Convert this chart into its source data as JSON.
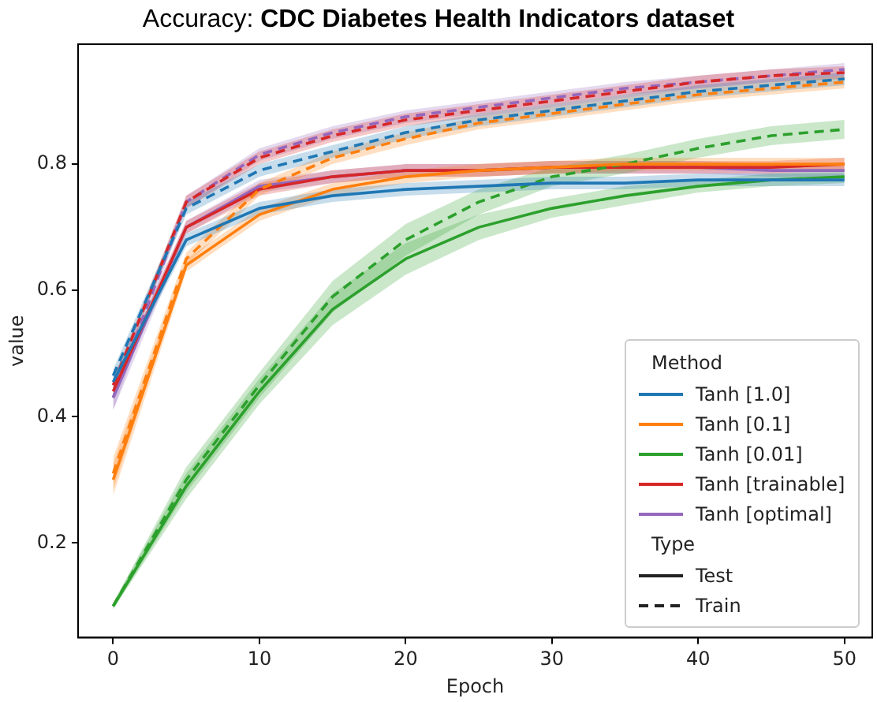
{
  "chart_data": {
    "type": "line",
    "title": "Accuracy: CDC Diabetes Health Indicators dataset",
    "xlabel": "Epoch",
    "ylabel": "value",
    "legend_title": "Method",
    "legend": "bottom right",
    "grid": false,
    "marker": "none",
    "x": [
      0,
      5,
      10,
      15,
      20,
      25,
      30,
      35,
      40,
      45,
      50
    ],
    "xlim": [
      -2.4,
      51.9
    ],
    "xticks": [
      0,
      10,
      20,
      30,
      40,
      50
    ],
    "ylim": [
      0.05,
      0.99
    ],
    "yticks": [
      0.2,
      0.4,
      0.6,
      0.8
    ],
    "annotations": [
      "Type",
      "Test",
      "Train"
    ],
    "series": [
      {
        "name": "Tanh [1.0]",
        "color": "#1f77b4",
        "line_style": "solid",
        "values": [
          0.455,
          0.68,
          0.73,
          0.75,
          0.76,
          0.765,
          0.77,
          0.77,
          0.775,
          0.775,
          0.775
        ],
        "lower": [
          0.445,
          0.67,
          0.72,
          0.74,
          0.75,
          0.755,
          0.76,
          0.76,
          0.765,
          0.765,
          0.765
        ],
        "upper": [
          0.465,
          0.69,
          0.74,
          0.76,
          0.77,
          0.775,
          0.78,
          0.78,
          0.785,
          0.785,
          0.785
        ]
      },
      {
        "color": "#1f77b4",
        "line_style": "dashed",
        "values": [
          0.465,
          0.73,
          0.79,
          0.82,
          0.85,
          0.87,
          0.885,
          0.9,
          0.915,
          0.925,
          0.935
        ],
        "lower": [
          0.455,
          0.72,
          0.78,
          0.81,
          0.84,
          0.86,
          0.875,
          0.89,
          0.905,
          0.915,
          0.925
        ],
        "upper": [
          0.475,
          0.74,
          0.8,
          0.83,
          0.86,
          0.88,
          0.895,
          0.91,
          0.925,
          0.935,
          0.945
        ]
      },
      {
        "name": "Tanh [0.1]",
        "color": "#ff7f0e",
        "line_style": "solid",
        "values": [
          0.3,
          0.64,
          0.72,
          0.76,
          0.78,
          0.79,
          0.795,
          0.8,
          0.8,
          0.8,
          0.8
        ],
        "lower": [
          0.275,
          0.63,
          0.71,
          0.75,
          0.77,
          0.78,
          0.785,
          0.79,
          0.79,
          0.79,
          0.79
        ],
        "upper": [
          0.325,
          0.65,
          0.73,
          0.77,
          0.79,
          0.8,
          0.805,
          0.81,
          0.81,
          0.81,
          0.81
        ]
      },
      {
        "color": "#ff7f0e",
        "line_style": "dashed",
        "values": [
          0.31,
          0.65,
          0.76,
          0.81,
          0.84,
          0.865,
          0.88,
          0.895,
          0.91,
          0.92,
          0.93
        ],
        "lower": [
          0.285,
          0.64,
          0.75,
          0.8,
          0.83,
          0.855,
          0.87,
          0.885,
          0.9,
          0.91,
          0.92
        ],
        "upper": [
          0.335,
          0.66,
          0.77,
          0.82,
          0.85,
          0.875,
          0.89,
          0.905,
          0.92,
          0.93,
          0.94
        ]
      },
      {
        "name": "Tanh [0.01]",
        "color": "#2ca02c",
        "line_style": "solid",
        "values": [
          0.1,
          0.29,
          0.44,
          0.57,
          0.65,
          0.7,
          0.73,
          0.75,
          0.765,
          0.775,
          0.78
        ],
        "lower": [
          0.095,
          0.27,
          0.42,
          0.545,
          0.625,
          0.68,
          0.715,
          0.735,
          0.755,
          0.765,
          0.77
        ],
        "upper": [
          0.105,
          0.31,
          0.46,
          0.595,
          0.675,
          0.72,
          0.745,
          0.765,
          0.775,
          0.785,
          0.79
        ]
      },
      {
        "color": "#2ca02c",
        "line_style": "dashed",
        "values": [
          0.1,
          0.3,
          0.45,
          0.59,
          0.68,
          0.74,
          0.78,
          0.8,
          0.825,
          0.845,
          0.855
        ],
        "lower": [
          0.095,
          0.28,
          0.43,
          0.565,
          0.655,
          0.72,
          0.765,
          0.785,
          0.81,
          0.83,
          0.84
        ],
        "upper": [
          0.105,
          0.32,
          0.47,
          0.615,
          0.705,
          0.76,
          0.795,
          0.815,
          0.84,
          0.86,
          0.87
        ]
      },
      {
        "name": "Tanh [trainable]",
        "color": "#d62728",
        "line_style": "solid",
        "values": [
          0.44,
          0.7,
          0.76,
          0.78,
          0.79,
          0.79,
          0.795,
          0.795,
          0.795,
          0.795,
          0.8
        ],
        "lower": [
          0.43,
          0.69,
          0.75,
          0.77,
          0.78,
          0.78,
          0.785,
          0.785,
          0.785,
          0.785,
          0.79
        ],
        "upper": [
          0.45,
          0.71,
          0.77,
          0.79,
          0.8,
          0.8,
          0.805,
          0.805,
          0.805,
          0.805,
          0.81
        ]
      },
      {
        "color": "#d62728",
        "line_style": "dashed",
        "values": [
          0.45,
          0.74,
          0.81,
          0.845,
          0.87,
          0.885,
          0.9,
          0.915,
          0.93,
          0.94,
          0.945
        ],
        "lower": [
          0.44,
          0.73,
          0.8,
          0.835,
          0.86,
          0.875,
          0.89,
          0.905,
          0.92,
          0.93,
          0.935
        ],
        "upper": [
          0.46,
          0.75,
          0.82,
          0.855,
          0.88,
          0.895,
          0.91,
          0.925,
          0.94,
          0.95,
          0.955
        ]
      },
      {
        "name": "Tanh [optimal]",
        "color": "#9467bd",
        "line_style": "solid",
        "values": [
          0.43,
          0.7,
          0.765,
          0.78,
          0.79,
          0.79,
          0.795,
          0.795,
          0.795,
          0.79,
          0.79
        ],
        "lower": [
          0.41,
          0.69,
          0.755,
          0.77,
          0.78,
          0.78,
          0.785,
          0.785,
          0.785,
          0.78,
          0.78
        ],
        "upper": [
          0.45,
          0.71,
          0.775,
          0.79,
          0.8,
          0.8,
          0.805,
          0.805,
          0.805,
          0.8,
          0.8
        ]
      },
      {
        "color": "#9467bd",
        "line_style": "dashed",
        "values": [
          0.43,
          0.74,
          0.815,
          0.85,
          0.875,
          0.89,
          0.905,
          0.92,
          0.93,
          0.94,
          0.95
        ],
        "lower": [
          0.41,
          0.73,
          0.805,
          0.84,
          0.865,
          0.88,
          0.895,
          0.91,
          0.92,
          0.93,
          0.94
        ],
        "upper": [
          0.45,
          0.75,
          0.825,
          0.86,
          0.885,
          0.9,
          0.915,
          0.93,
          0.94,
          0.95,
          0.96
        ]
      }
    ]
  }
}
